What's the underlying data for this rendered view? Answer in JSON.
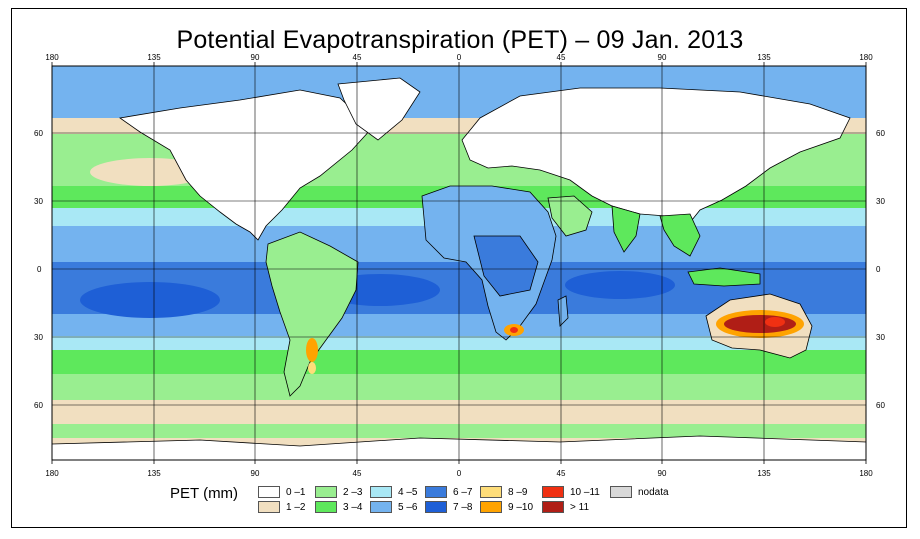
{
  "title": "Potential Evapotranspiration (PET) – 09 Jan. 2013",
  "map": {
    "top_lon_labels": [
      "180",
      "135",
      "90",
      "45",
      "0",
      "45",
      "90",
      "135",
      "180"
    ],
    "bottom_lon_labels": [
      "180",
      "135",
      "90",
      "45",
      "0",
      "45",
      "90",
      "135",
      "180"
    ],
    "left_lat_labels": [
      "60",
      "30",
      "0",
      "30",
      "60"
    ],
    "right_lat_labels": [
      "60",
      "30",
      "0",
      "30",
      "60"
    ],
    "colors": {
      "c0_1": "#ffffff",
      "c1_2": "#f1dfc0",
      "c2_3": "#99ee90",
      "c3_4": "#5ee85c",
      "c4_5": "#a9e8f5",
      "c5_6": "#74b3ef",
      "c6_7": "#3a7bdc",
      "c7_8": "#1e5fd6",
      "c8_9": "#fedd7a",
      "c9_10": "#ffa300",
      "c10_11": "#f03012",
      "c11": "#b01e16",
      "nodata": "#d8d8d8",
      "coast": "#000000"
    }
  },
  "legend": {
    "label": "PET (mm)",
    "items": [
      {
        "label": "0 –1",
        "color": "#ffffff"
      },
      {
        "label": "1 –2",
        "color": "#f1dfc0"
      },
      {
        "label": "2 –3",
        "color": "#99ee90"
      },
      {
        "label": "3 –4",
        "color": "#5ee85c"
      },
      {
        "label": "4 –5",
        "color": "#a9e8f5"
      },
      {
        "label": "5 –6",
        "color": "#74b3ef"
      },
      {
        "label": "6 –7",
        "color": "#3a7bdc"
      },
      {
        "label": "7 –8",
        "color": "#1e5fd6"
      },
      {
        "label": "8 –9",
        "color": "#fedd7a"
      },
      {
        "label": "9 –10",
        "color": "#ffa300"
      },
      {
        "label": "10 –11",
        "color": "#f03012"
      },
      {
        "label": "> 11",
        "color": "#b01e16"
      },
      {
        "label": "nodata",
        "color": "#d8d8d8"
      }
    ]
  }
}
